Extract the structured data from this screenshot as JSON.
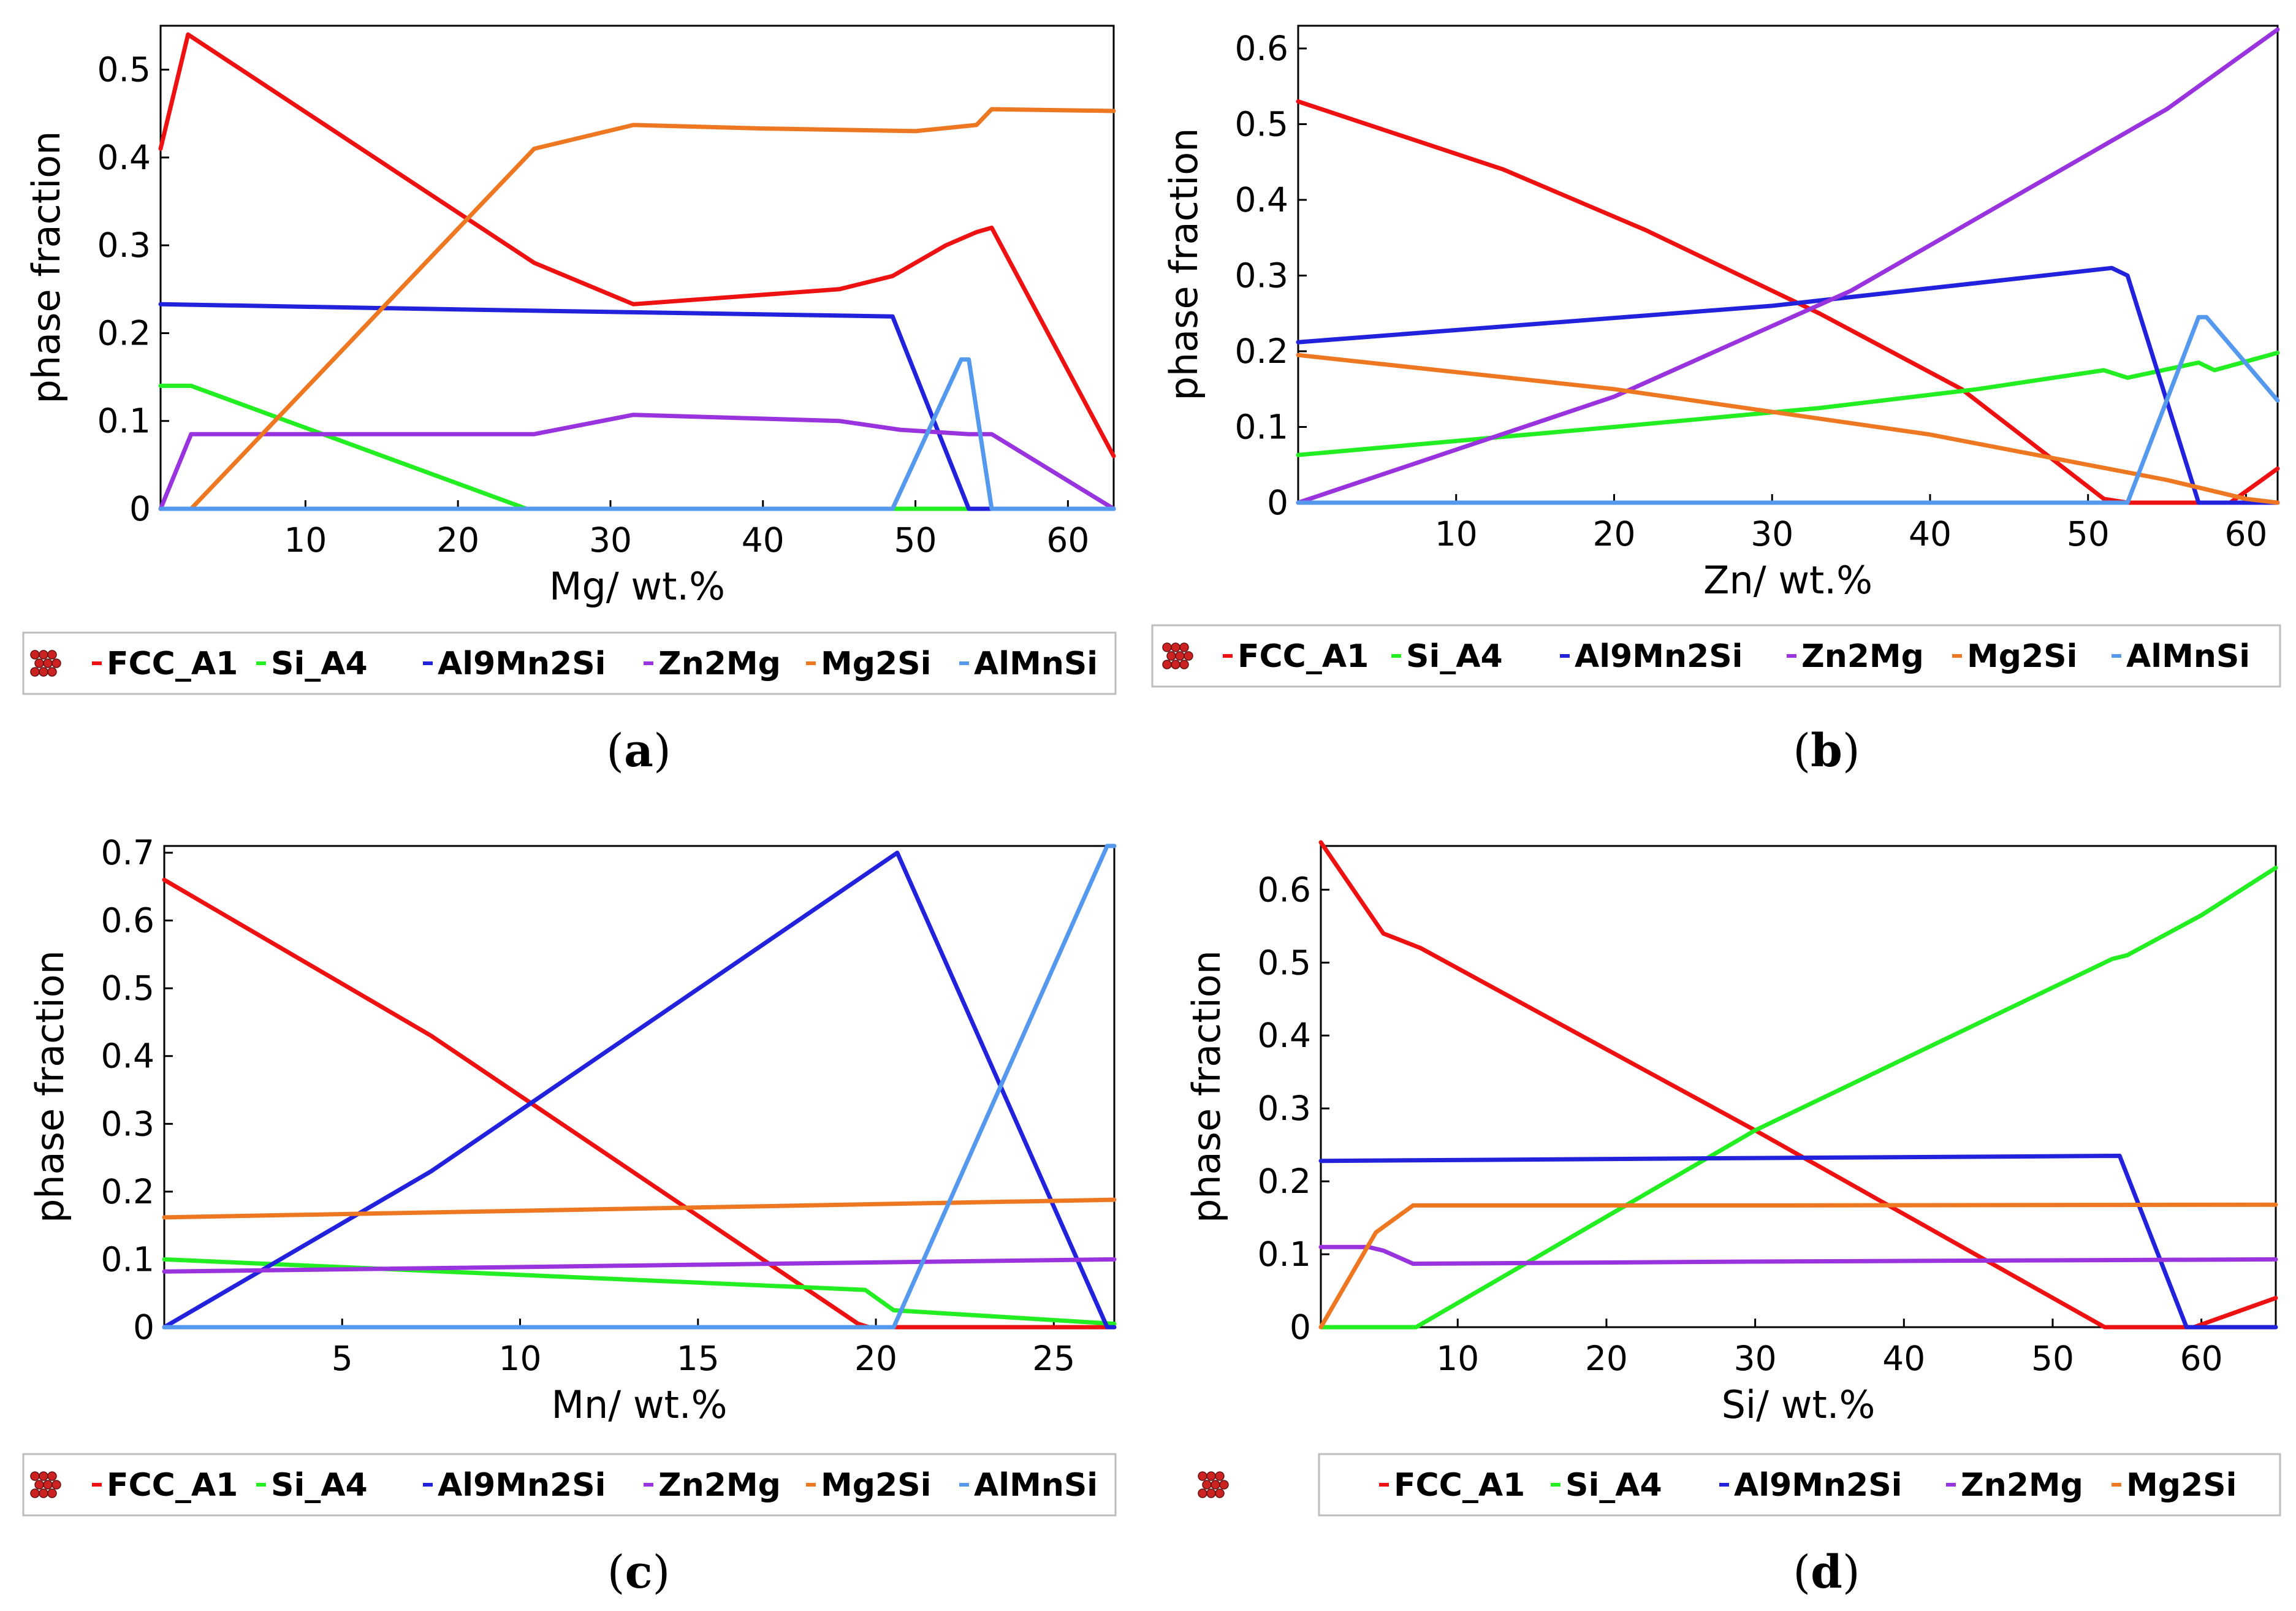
{
  "figure": {
    "type": "multi-panel phase fraction plots"
  },
  "chart_data": [
    {
      "panel": "a",
      "type": "line",
      "xlabel": "Mg/ wt.%",
      "ylabel": "phase fraction",
      "xlim": [
        0.5,
        63
      ],
      "ylim": [
        0,
        0.55
      ],
      "xticks": [
        "10",
        "20",
        "30",
        "40",
        "50",
        "60"
      ],
      "yticks": [
        "0",
        "0.1",
        "0.2",
        "0.3",
        "0.4",
        "0.5"
      ],
      "label_prefix": "(",
      "label_letter": "a",
      "label_suffix": ")",
      "legend": {
        "icon": true,
        "items": [
          "FCC_A1",
          "Si_A4",
          "Al9Mn2Si",
          "Zn2Mg",
          "Mg2Si",
          "AlMnSi"
        ]
      },
      "series": [
        {
          "name": "FCC_A1",
          "color": "#ee1111",
          "x": [
            0.5,
            2.3,
            25,
            31.5,
            45,
            48.5,
            52,
            54,
            55,
            63
          ],
          "y": [
            0.41,
            0.54,
            0.28,
            0.233,
            0.25,
            0.265,
            0.3,
            0.315,
            0.32,
            0.06
          ]
        },
        {
          "name": "Si_A4",
          "color": "#22ee22",
          "x": [
            0.5,
            2.5,
            24.5,
            63
          ],
          "y": [
            0.14,
            0.14,
            0,
            0
          ]
        },
        {
          "name": "Al9Mn2Si",
          "color": "#2222dd",
          "x": [
            0.5,
            20,
            48.5,
            53.5,
            63
          ],
          "y": [
            0.233,
            0.227,
            0.219,
            0,
            0
          ]
        },
        {
          "name": "Zn2Mg",
          "color": "#9933dd",
          "x": [
            0.5,
            2.5,
            25,
            31.5,
            45,
            49,
            53.5,
            55,
            63
          ],
          "y": [
            0,
            0.085,
            0.085,
            0.107,
            0.1,
            0.09,
            0.085,
            0.085,
            0
          ]
        },
        {
          "name": "Mg2Si",
          "color": "#ee7722",
          "x": [
            0.5,
            2.5,
            25,
            31.5,
            40,
            50,
            54,
            55,
            63
          ],
          "y": [
            0,
            0,
            0.41,
            0.437,
            0.433,
            0.43,
            0.437,
            0.455,
            0.453
          ]
        },
        {
          "name": "AlMnSi",
          "color": "#5599ee",
          "x": [
            0.5,
            48.5,
            53,
            53.5,
            55,
            63
          ],
          "y": [
            0,
            0,
            0.17,
            0.17,
            0,
            0
          ]
        }
      ]
    },
    {
      "panel": "b",
      "type": "line",
      "xlabel": "Zn/ wt.%",
      "ylabel": "phase fraction",
      "xlim": [
        0,
        62
      ],
      "ylim": [
        0,
        0.63
      ],
      "xticks": [
        "10",
        "20",
        "30",
        "40",
        "50",
        "60"
      ],
      "yticks": [
        "0",
        "0.1",
        "0.2",
        "0.3",
        "0.4",
        "0.5",
        "0.6"
      ],
      "label_prefix": "(",
      "label_letter": "b",
      "label_suffix": ")",
      "legend": {
        "icon": true,
        "items": [
          "FCC_A1",
          "Si_A4",
          "Al9Mn2Si",
          "Zn2Mg",
          "Mg2Si",
          "AlMnSi"
        ]
      },
      "series": [
        {
          "name": "FCC_A1",
          "color": "#ee1111",
          "x": [
            0,
            13,
            22,
            33,
            42,
            51,
            52.5,
            59,
            62
          ],
          "y": [
            0.53,
            0.44,
            0.36,
            0.25,
            0.15,
            0.005,
            0,
            0,
            0.045
          ]
        },
        {
          "name": "Si_A4",
          "color": "#22ee22",
          "x": [
            0,
            20,
            33,
            43,
            51,
            52.5,
            57,
            58,
            62
          ],
          "y": [
            0.063,
            0.1,
            0.125,
            0.15,
            0.175,
            0.165,
            0.185,
            0.175,
            0.198
          ]
        },
        {
          "name": "Al9Mn2Si",
          "color": "#2222dd",
          "x": [
            0,
            30,
            51.5,
            52.5,
            57,
            62
          ],
          "y": [
            0.212,
            0.26,
            0.31,
            0.3,
            0,
            0
          ]
        },
        {
          "name": "Zn2Mg",
          "color": "#9933dd",
          "x": [
            0,
            20,
            35,
            45,
            55,
            62
          ],
          "y": [
            0,
            0.14,
            0.28,
            0.4,
            0.52,
            0.625
          ]
        },
        {
          "name": "Mg2Si",
          "color": "#ee7722",
          "x": [
            0,
            20,
            40,
            55,
            60,
            62
          ],
          "y": [
            0.195,
            0.15,
            0.09,
            0.03,
            0.005,
            0
          ]
        },
        {
          "name": "AlMnSi",
          "color": "#5599ee",
          "x": [
            0,
            52.5,
            57,
            57.5,
            62
          ],
          "y": [
            0,
            0,
            0.245,
            0.245,
            0.135
          ]
        }
      ]
    },
    {
      "panel": "c",
      "type": "line",
      "xlabel": "Mn/ wt.%",
      "ylabel": "phase fraction",
      "xlim": [
        0,
        26.7
      ],
      "ylim": [
        0,
        0.71
      ],
      "xticks": [
        "5",
        "10",
        "15",
        "20",
        "25"
      ],
      "yticks": [
        "0",
        "0.1",
        "0.2",
        "0.3",
        "0.4",
        "0.5",
        "0.6",
        "0.7"
      ],
      "label_prefix": "(",
      "label_letter": "c",
      "label_suffix": ")",
      "legend": {
        "icon": true,
        "items": [
          "FCC_A1",
          "Si_A4",
          "Al9Mn2Si",
          "Zn2Mg",
          "Mg2Si",
          "AlMnSi"
        ]
      },
      "series": [
        {
          "name": "FCC_A1",
          "color": "#ee1111",
          "x": [
            0,
            7.5,
            19.5,
            19.8,
            26.7
          ],
          "y": [
            0.66,
            0.43,
            0.005,
            0,
            0
          ]
        },
        {
          "name": "Si_A4",
          "color": "#22ee22",
          "x": [
            0,
            19.7,
            20.5,
            26.7
          ],
          "y": [
            0.1,
            0.055,
            0.025,
            0.005
          ]
        },
        {
          "name": "Al9Mn2Si",
          "color": "#2222dd",
          "x": [
            0,
            7.5,
            20.6,
            26.5,
            26.7
          ],
          "y": [
            0,
            0.23,
            0.7,
            0,
            0
          ]
        },
        {
          "name": "Zn2Mg",
          "color": "#9933dd",
          "x": [
            0,
            26.7
          ],
          "y": [
            0.082,
            0.1
          ]
        },
        {
          "name": "Mg2Si",
          "color": "#ee7722",
          "x": [
            0,
            26.7
          ],
          "y": [
            0.162,
            0.188
          ]
        },
        {
          "name": "AlMnSi",
          "color": "#5599ee",
          "x": [
            0,
            20.5,
            26.5,
            26.7
          ],
          "y": [
            0,
            0,
            0.71,
            0.71
          ]
        }
      ]
    },
    {
      "panel": "d",
      "type": "line",
      "xlabel": "Si/ wt.%",
      "ylabel": "phase fraction",
      "xlim": [
        0.8,
        65
      ],
      "ylim": [
        0,
        0.66
      ],
      "xticks": [
        "10",
        "20",
        "30",
        "40",
        "50",
        "60"
      ],
      "yticks": [
        "0",
        "0.1",
        "0.2",
        "0.3",
        "0.4",
        "0.5",
        "0.6"
      ],
      "label_prefix": "(",
      "label_letter": "d",
      "label_suffix": ")",
      "legend": {
        "icon": true,
        "items": [
          "FCC_A1",
          "Si_A4",
          "Al9Mn2Si",
          "Zn2Mg",
          "Mg2Si"
        ]
      },
      "series": [
        {
          "name": "FCC_A1",
          "color": "#ee1111",
          "x": [
            0.8,
            5,
            7.5,
            30,
            53.5,
            59.5,
            65
          ],
          "y": [
            0.665,
            0.54,
            0.52,
            0.27,
            0,
            0,
            0.04
          ]
        },
        {
          "name": "Si_A4",
          "color": "#22ee22",
          "x": [
            0.8,
            7.2,
            30,
            54,
            55,
            60,
            65
          ],
          "y": [
            0,
            0,
            0.27,
            0.505,
            0.51,
            0.565,
            0.63
          ]
        },
        {
          "name": "Al9Mn2Si",
          "color": "#2222dd",
          "x": [
            0.8,
            30,
            54.5,
            59,
            65
          ],
          "y": [
            0.228,
            0.232,
            0.235,
            0,
            0
          ]
        },
        {
          "name": "Zn2Mg",
          "color": "#9933dd",
          "x": [
            0.8,
            4,
            5,
            7,
            30,
            65
          ],
          "y": [
            0.11,
            0.11,
            0.105,
            0.087,
            0.09,
            0.093
          ]
        },
        {
          "name": "Mg2Si",
          "color": "#ee7722",
          "x": [
            0.8,
            4.5,
            7,
            30,
            65
          ],
          "y": [
            0,
            0.13,
            0.167,
            0.167,
            0.168
          ]
        }
      ]
    }
  ]
}
